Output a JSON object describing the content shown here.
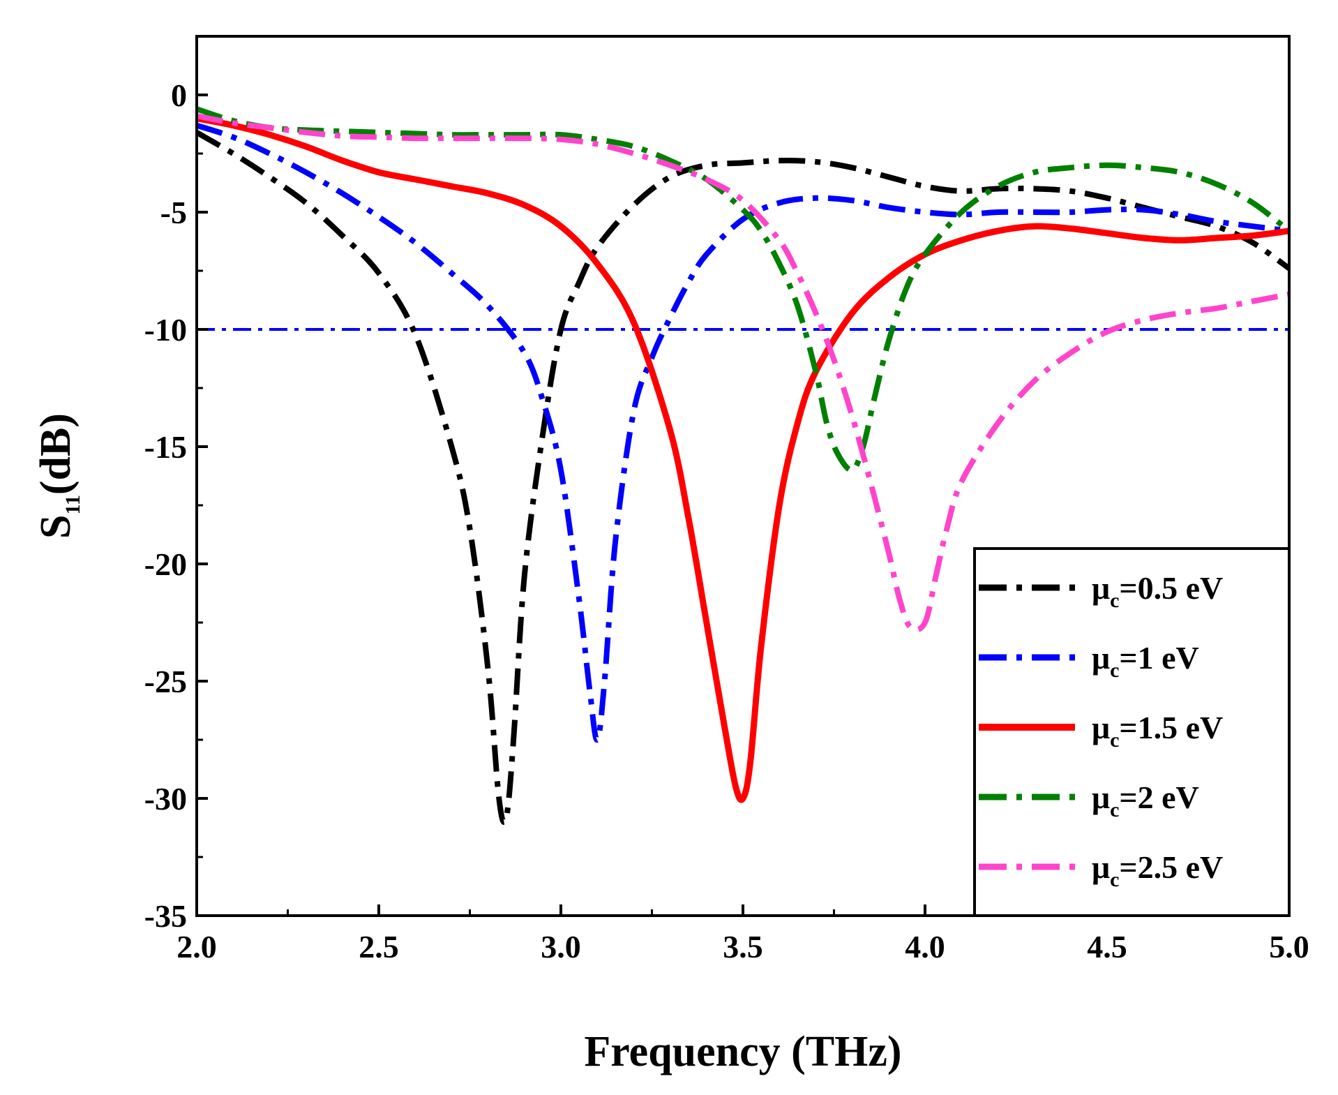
{
  "chart_data": {
    "type": "line",
    "title": "",
    "xlabel": "Frequency (THz)",
    "ylabel_main": "S",
    "ylabel_sub": "11",
    "ylabel_tail": "(dB)",
    "xlim": [
      2.0,
      5.0
    ],
    "ylim": [
      -35,
      2.5
    ],
    "xticks": [
      2.0,
      2.5,
      3.0,
      3.5,
      4.0,
      4.5,
      5.0
    ],
    "xtick_labels": [
      "2.0",
      "2.5",
      "3.0",
      "3.5",
      "4.0",
      "4.5",
      "5.0"
    ],
    "yticks": [
      0,
      -5,
      -10,
      -15,
      -20,
      -25,
      -30,
      -35
    ],
    "ytick_labels": [
      "0",
      "-5",
      "-10",
      "-15",
      "-20",
      "-25",
      "-30",
      "-35"
    ],
    "legend_position": "bottom-right",
    "reference_line": {
      "y": -10,
      "color": "#0000ff",
      "style": "dash-dot"
    },
    "series": [
      {
        "name": "μc=0.5 eV",
        "mu": "μ",
        "sub": "c",
        "rest": "=0.5 eV",
        "color": "#000000",
        "style": "dash-dot",
        "x": [
          2.0,
          2.1,
          2.2,
          2.3,
          2.4,
          2.5,
          2.6,
          2.7,
          2.75,
          2.8,
          2.83,
          2.85,
          2.87,
          2.9,
          2.95,
          3.0,
          3.05,
          3.1,
          3.2,
          3.3,
          3.4,
          3.5,
          3.6,
          3.7,
          3.8,
          3.9,
          4.0,
          4.1,
          4.2,
          4.3,
          4.4,
          4.5,
          4.6,
          4.7,
          4.8,
          4.9,
          5.0
        ],
        "y": [
          -1.6,
          -2.5,
          -3.5,
          -4.6,
          -6.0,
          -7.6,
          -10.2,
          -15.0,
          -18.5,
          -24.5,
          -30.0,
          -30.8,
          -27.5,
          -20.5,
          -14.5,
          -10.0,
          -8.0,
          -6.5,
          -4.7,
          -3.5,
          -3.0,
          -2.9,
          -2.8,
          -2.85,
          -3.1,
          -3.5,
          -3.9,
          -4.1,
          -4.0,
          -4.0,
          -4.1,
          -4.4,
          -4.8,
          -5.2,
          -5.6,
          -6.3,
          -7.4
        ]
      },
      {
        "name": "μc=1 eV",
        "mu": "μ",
        "sub": "c",
        "rest": "=1 eV",
        "color": "#0000ff",
        "style": "dash-dot",
        "x": [
          2.0,
          2.1,
          2.2,
          2.3,
          2.4,
          2.5,
          2.6,
          2.7,
          2.8,
          2.9,
          2.95,
          3.0,
          3.05,
          3.08,
          3.1,
          3.12,
          3.15,
          3.2,
          3.25,
          3.3,
          3.35,
          3.4,
          3.5,
          3.6,
          3.7,
          3.8,
          3.9,
          4.0,
          4.1,
          4.2,
          4.3,
          4.4,
          4.5,
          4.6,
          4.7,
          4.8,
          4.9,
          5.0
        ],
        "y": [
          -1.3,
          -1.8,
          -2.5,
          -3.3,
          -4.2,
          -5.2,
          -6.3,
          -7.6,
          -9.0,
          -11.0,
          -13.0,
          -16.0,
          -21.5,
          -25.5,
          -27.5,
          -25.0,
          -19.0,
          -13.5,
          -11.2,
          -9.5,
          -8.0,
          -6.8,
          -5.3,
          -4.6,
          -4.4,
          -4.5,
          -4.8,
          -5.0,
          -5.1,
          -5.0,
          -5.0,
          -5.0,
          -4.9,
          -4.9,
          -5.1,
          -5.4,
          -5.6,
          -5.8
        ]
      },
      {
        "name": "μc=1.5 eV",
        "mu": "μ",
        "sub": "c",
        "rest": "=1.5 eV",
        "color": "#ff0000",
        "style": "solid",
        "x": [
          2.0,
          2.1,
          2.2,
          2.3,
          2.4,
          2.5,
          2.6,
          2.7,
          2.8,
          2.9,
          3.0,
          3.1,
          3.2,
          3.3,
          3.35,
          3.4,
          3.45,
          3.48,
          3.5,
          3.52,
          3.55,
          3.6,
          3.65,
          3.7,
          3.8,
          3.9,
          4.0,
          4.1,
          4.2,
          4.3,
          4.4,
          4.5,
          4.6,
          4.7,
          4.8,
          4.9,
          5.0
        ],
        "y": [
          -1.0,
          -1.3,
          -1.7,
          -2.2,
          -2.8,
          -3.3,
          -3.6,
          -3.9,
          -4.2,
          -4.7,
          -5.6,
          -7.2,
          -9.7,
          -14.3,
          -18.0,
          -22.5,
          -27.0,
          -29.5,
          -30.0,
          -28.5,
          -23.5,
          -17.5,
          -14.0,
          -11.8,
          -9.3,
          -7.8,
          -6.8,
          -6.2,
          -5.8,
          -5.6,
          -5.7,
          -5.9,
          -6.1,
          -6.2,
          -6.1,
          -6.0,
          -5.8
        ]
      },
      {
        "name": "μc=2 eV",
        "mu": "μ",
        "sub": "c",
        "rest": "=2 eV",
        "color": "#008000",
        "style": "dash-dot",
        "x": [
          2.0,
          2.1,
          2.2,
          2.3,
          2.4,
          2.5,
          2.6,
          2.7,
          2.8,
          2.9,
          3.0,
          3.1,
          3.2,
          3.3,
          3.4,
          3.5,
          3.55,
          3.6,
          3.65,
          3.7,
          3.73,
          3.76,
          3.8,
          3.83,
          3.86,
          3.9,
          3.95,
          4.0,
          4.1,
          4.2,
          4.3,
          4.4,
          4.5,
          4.6,
          4.7,
          4.8,
          4.9,
          5.0
        ],
        "y": [
          -0.6,
          -1.1,
          -1.4,
          -1.5,
          -1.55,
          -1.6,
          -1.65,
          -1.7,
          -1.7,
          -1.7,
          -1.7,
          -1.9,
          -2.2,
          -2.8,
          -3.6,
          -4.9,
          -5.8,
          -7.2,
          -9.0,
          -11.8,
          -14.0,
          -15.3,
          -16.0,
          -15.0,
          -13.0,
          -10.5,
          -8.2,
          -6.8,
          -5.0,
          -3.9,
          -3.3,
          -3.1,
          -3.0,
          -3.1,
          -3.3,
          -3.8,
          -4.6,
          -5.8
        ]
      },
      {
        "name": "μc=2.5 eV",
        "mu": "μ",
        "sub": "c",
        "rest": "=2.5 eV",
        "color": "#ff44cc",
        "style": "dash-dot",
        "x": [
          2.0,
          2.1,
          2.2,
          2.3,
          2.4,
          2.5,
          2.6,
          2.7,
          2.8,
          2.9,
          3.0,
          3.1,
          3.2,
          3.3,
          3.4,
          3.5,
          3.6,
          3.65,
          3.7,
          3.75,
          3.8,
          3.85,
          3.9,
          3.93,
          3.96,
          4.0,
          4.03,
          4.06,
          4.1,
          4.2,
          4.3,
          4.4,
          4.5,
          4.6,
          4.7,
          4.8,
          4.9,
          5.0
        ],
        "y": [
          -0.9,
          -1.2,
          -1.4,
          -1.6,
          -1.75,
          -1.8,
          -1.85,
          -1.85,
          -1.85,
          -1.85,
          -1.9,
          -2.1,
          -2.5,
          -3.0,
          -3.6,
          -4.5,
          -6.2,
          -7.6,
          -9.3,
          -11.3,
          -13.7,
          -16.5,
          -19.5,
          -21.5,
          -22.7,
          -22.5,
          -20.5,
          -18.5,
          -16.5,
          -14.0,
          -12.2,
          -11.0,
          -10.1,
          -9.6,
          -9.3,
          -9.1,
          -8.8,
          -8.5
        ]
      }
    ]
  }
}
